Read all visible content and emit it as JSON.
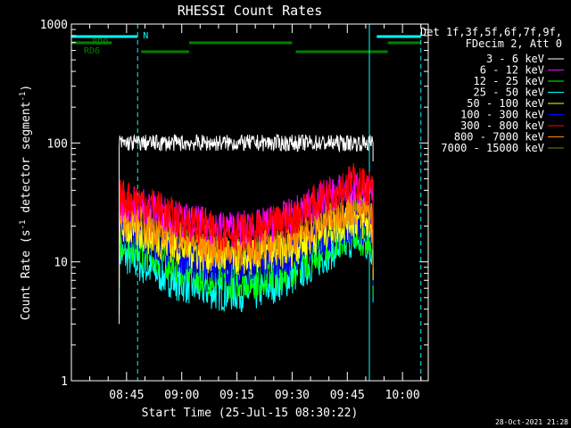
{
  "chart_data": {
    "type": "line",
    "title": "RHESSI Count Rates",
    "xlabel": "Start Time (25-Jul-15 08:30:22)",
    "ylabel_parts": [
      "Count Rate (s",
      "-1",
      " detector segment",
      "-1",
      ")"
    ],
    "y_scale": "log",
    "ylim": [
      1,
      1000
    ],
    "xlim": [
      "08:30",
      "10:07"
    ],
    "y_ticks": [
      {
        "value": 1,
        "label": "1"
      },
      {
        "value": 10,
        "label": "10"
      },
      {
        "value": 100,
        "label": "100"
      },
      {
        "value": 1000,
        "label": "1000"
      }
    ],
    "x_ticks": [
      {
        "value": "08:45",
        "label": "08:45"
      },
      {
        "value": "09:00",
        "label": "09:00"
      },
      {
        "value": "09:15",
        "label": "09:15"
      },
      {
        "value": "09:30",
        "label": "09:30"
      },
      {
        "value": "09:45",
        "label": "09:45"
      },
      {
        "value": "10:00",
        "label": "10:00"
      }
    ],
    "legend_header": [
      "Det 1f,3f,5f,6f,7f,9f,",
      "FDecim 2, Att 0"
    ],
    "legend_position": "right",
    "series": [
      {
        "name": "3 - 6 keV",
        "color": "#ffffff",
        "x": [
          "08:43",
          "08:50",
          "09:00",
          "09:10",
          "09:20",
          "09:30",
          "09:40",
          "09:50",
          "09:52"
        ],
        "values": [
          100,
          100,
          100,
          100,
          100,
          100,
          100,
          100,
          100
        ]
      },
      {
        "name": "6 - 12 keV",
        "color": "#ff00ff",
        "x": [
          "08:43",
          "08:50",
          "09:00",
          "09:10",
          "09:20",
          "09:30",
          "09:40",
          "09:47",
          "09:52"
        ],
        "values": [
          32,
          30,
          22,
          19,
          19,
          24,
          36,
          42,
          36
        ]
      },
      {
        "name": "12 - 25 keV",
        "color": "#00ff00",
        "x": [
          "08:43",
          "08:50",
          "09:00",
          "09:10",
          "09:20",
          "09:30",
          "09:40",
          "09:47",
          "09:52"
        ],
        "values": [
          15,
          12,
          9,
          7,
          7,
          9,
          14,
          17,
          15
        ]
      },
      {
        "name": "25 - 50 keV",
        "color": "#00ffff",
        "x": [
          "08:43",
          "08:50",
          "09:00",
          "09:10",
          "09:20",
          "09:30",
          "09:40",
          "09:47",
          "09:52"
        ],
        "values": [
          12,
          9,
          6.5,
          5.5,
          5.5,
          7.5,
          12,
          16,
          13
        ]
      },
      {
        "name": "50 - 100 keV",
        "color": "#ffff00",
        "x": [
          "08:43",
          "08:50",
          "09:00",
          "09:10",
          "09:20",
          "09:30",
          "09:40",
          "09:47",
          "09:52"
        ],
        "values": [
          20,
          17,
          13,
          11,
          11,
          13,
          19,
          23,
          20
        ]
      },
      {
        "name": "100 - 300 keV",
        "color": "#0000ff",
        "x": [
          "08:43",
          "08:50",
          "09:00",
          "09:10",
          "09:20",
          "09:30",
          "09:40",
          "09:47",
          "09:52"
        ],
        "values": [
          18,
          15,
          11,
          9,
          9,
          11,
          17,
          21,
          18
        ]
      },
      {
        "name": "300 - 800 keV",
        "color": "#ff0000",
        "x": [
          "08:43",
          "08:50",
          "09:00",
          "09:10",
          "09:20",
          "09:30",
          "09:40",
          "09:47",
          "09:52"
        ],
        "values": [
          35,
          32,
          22,
          18,
          18,
          23,
          38,
          48,
          40
        ]
      },
      {
        "name": "800 - 7000 keV",
        "color": "#ff8c00",
        "x": [
          "08:43",
          "08:50",
          "09:00",
          "09:10",
          "09:20",
          "09:30",
          "09:40",
          "09:47",
          "09:52"
        ],
        "values": [
          24,
          21,
          16,
          13,
          13,
          16,
          24,
          29,
          25
        ]
      },
      {
        "name": "7000 - 15000 keV",
        "color": "#808000",
        "x": [
          "08:43",
          "08:50",
          "09:00",
          "09:10",
          "09:20",
          "09:30",
          "09:40",
          "09:47",
          "09:52"
        ],
        "values": [
          22,
          19,
          14,
          12,
          12,
          14,
          22,
          27,
          23
        ]
      }
    ],
    "flag_bars": [
      {
        "name": "N",
        "color": "#00ffff",
        "segments": [
          [
            "08:30",
            "08:48"
          ],
          [
            "09:53",
            "10:05"
          ]
        ]
      },
      {
        "name": "RD0",
        "color": "#008000",
        "segments": [
          [
            "08:30",
            "08:41"
          ],
          [
            "09:02",
            "09:30"
          ],
          [
            "09:56",
            "10:05"
          ]
        ]
      },
      {
        "name": "RD6",
        "color": "#008000",
        "segments": [
          [
            "08:49",
            "09:02"
          ],
          [
            "09:31",
            "09:56"
          ]
        ]
      }
    ],
    "vlines": [
      {
        "x": "08:30",
        "style": "solid",
        "color": "#00ffff"
      },
      {
        "x": "08:48",
        "style": "dashed",
        "color": "#00ffff"
      },
      {
        "x": "09:51",
        "style": "solid",
        "color": "#00ffff"
      },
      {
        "x": "10:05",
        "style": "dashed",
        "color": "#00ffff"
      }
    ],
    "footer_date": "28-Oct-2021 21:28"
  }
}
